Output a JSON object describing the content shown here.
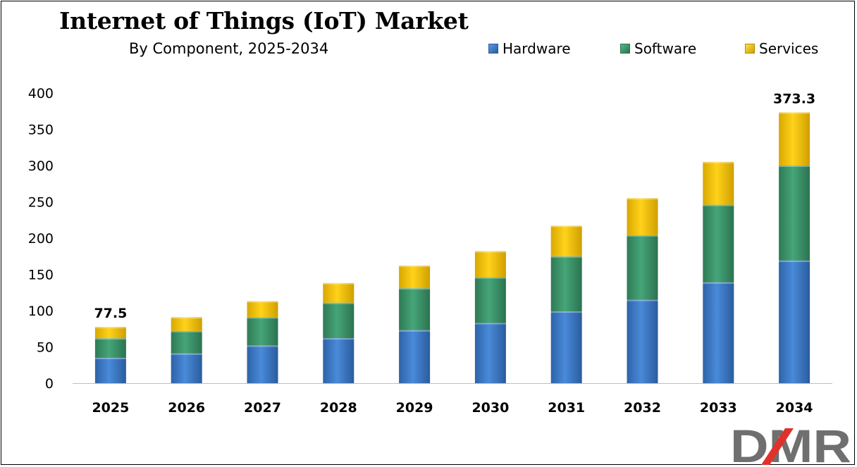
{
  "title": "Internet of Things (IoT) Market",
  "subtitle": "By Component, 2025-2034",
  "logo_text": "DMR",
  "colors": {
    "hardware": "#3f7fcf",
    "software": "#3f9a6e",
    "services": "#f6c400"
  },
  "chart_data": {
    "type": "bar",
    "stacked": true,
    "title": "Internet of Things (IoT) Market",
    "subtitle": "By Component, 2025-2034",
    "categories": [
      "2025",
      "2026",
      "2027",
      "2028",
      "2029",
      "2030",
      "2031",
      "2032",
      "2033",
      "2034"
    ],
    "series": [
      {
        "name": "Hardware",
        "values": [
          35,
          41,
          52,
          62,
          73,
          83,
          99,
          115,
          139,
          169
        ]
      },
      {
        "name": "Software",
        "values": [
          27,
          31,
          39,
          49,
          58,
          63,
          76,
          89,
          107,
          131
        ]
      },
      {
        "name": "Services",
        "values": [
          15.5,
          19,
          22,
          27,
          31,
          36,
          42,
          51,
          59,
          73.3
        ]
      }
    ],
    "totals_labels": [
      {
        "category": "2025",
        "text": "77.5"
      },
      {
        "category": "2034",
        "text": "373.3"
      }
    ],
    "yticks": [
      0,
      50,
      100,
      150,
      200,
      250,
      300,
      350,
      400
    ],
    "ylim": [
      0,
      400
    ],
    "xlabel": "",
    "ylabel": "",
    "grid": false,
    "legend_position": "top-right"
  }
}
